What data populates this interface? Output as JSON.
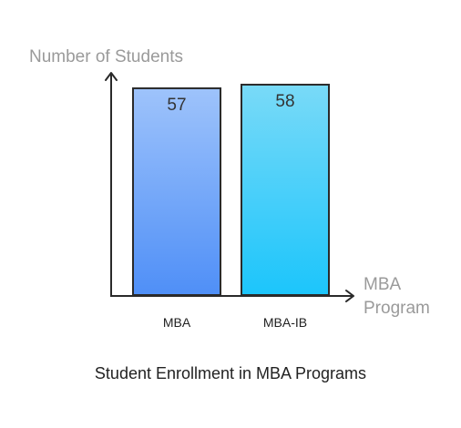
{
  "chart_data": {
    "type": "bar",
    "categories": [
      "MBA",
      "MBA-IB"
    ],
    "values": [
      57,
      58
    ],
    "title": "Student Enrollment in MBA Programs",
    "xlabel": [
      "MBA",
      "Program"
    ],
    "ylabel": "Number of Students",
    "ylim": [
      0,
      60
    ],
    "grid": false,
    "legend": "none",
    "bar_colors": [
      {
        "top": "#9ec3fb",
        "bottom": "#4f8ff7",
        "stroke": "#2a2a2a"
      },
      {
        "top": "#79daf8",
        "bottom": "#1cc5fb",
        "stroke": "#2a2a2a"
      }
    ],
    "axis_color": "#2a2a2a"
  }
}
